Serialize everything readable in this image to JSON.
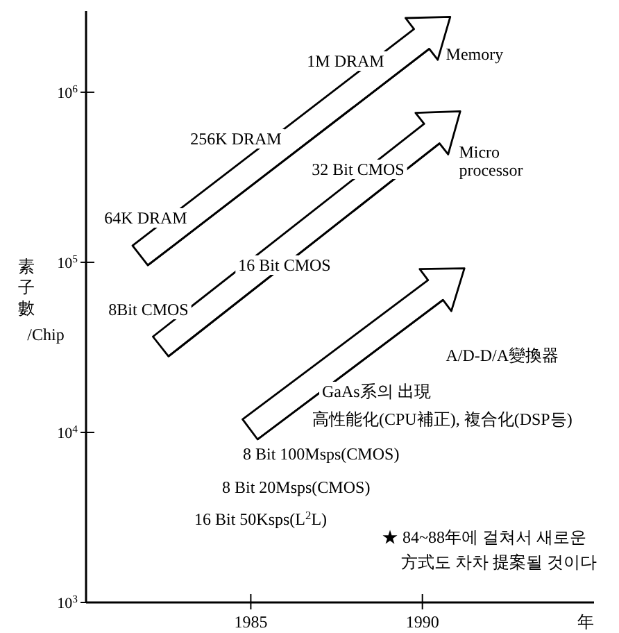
{
  "chart_data": {
    "type": "line",
    "ylabel": "素子數/Chip",
    "xlabel": "年",
    "log": "y",
    "xlim": [
      1980.2,
      1995
    ],
    "ylim": [
      1000,
      3000000
    ],
    "xticks": [
      1985,
      1990
    ],
    "yticks": [
      {
        "value": 1000,
        "label": "10$^{3}$"
      },
      {
        "value": 10000,
        "label": "10$^{4}$"
      },
      {
        "value": 100000,
        "label": "10$^{5}$"
      },
      {
        "value": 1000000,
        "label": "10$^{6}$"
      }
    ],
    "series": [
      {
        "name": "Memory",
        "color": "#000000",
        "x": [
          1982.0,
          1990.2
        ],
        "values": [
          96000,
          1800000
        ]
      },
      {
        "name": "Micro processor",
        "color": "#000000",
        "x": [
          1982.6,
          1990.5
        ],
        "values": [
          28000,
          500000
        ]
      },
      {
        "name": "A/D-D/A變換器",
        "color": "#000000",
        "x": [
          1985.2,
          1990.6
        ],
        "values": [
          9100,
          60000
        ]
      }
    ],
    "line_style": "solid",
    "marker": "none",
    "legend": false,
    "grid": false,
    "annotations": [
      "64K  DRAM",
      "256K DRAM",
      "1M DRAM",
      "32 Bit CMOS",
      "16 Bit  CMOS",
      "8Bit  CMOS",
      "GaAs系의 出現",
      "高性能化(CPU補正), 複合化(DSP등)",
      "8 Bit 100Msps(CMOS)",
      "8 Bit 20Msps(CMOS)",
      "16 Bit 50Ksps(L$^{2}$L)",
      "★ 84~88年에 걸쳐서 새로운 方式도 차차 提案될 것이다"
    ]
  }
}
